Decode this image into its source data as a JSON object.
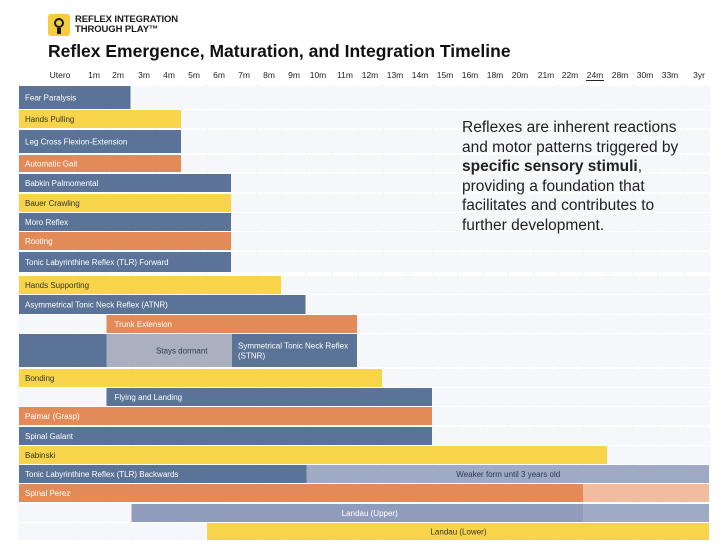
{
  "logo": {
    "line1": "REFLEX INTEGRATION",
    "line2": "THROUGH PLAY™"
  },
  "description": {
    "pre": "Reflexes are inherent reactions and motor patterns triggered by ",
    "bold": "specific sensory stimuli",
    "post": ", providing a foundation that facilitates and contributes to further development."
  },
  "colors": {
    "blue": "#5b7397",
    "orange": "#e38b58",
    "yellow": "#f7d44a",
    "blue_light": "#9fabc4",
    "orange_light": "#f2bca0",
    "yellow_light": "#fae59e",
    "grey": "#a9b1c0"
  },
  "chart_data": {
    "type": "gantt",
    "title": "Reflex Emergence, Maturation, and Integration Timeline",
    "timeline": [
      "Utero",
      "1m",
      "2m",
      "3m",
      "4m",
      "5m",
      "6m",
      "7m",
      "8m",
      "9m",
      "10m",
      "11m",
      "12m",
      "13m",
      "14m",
      "15m",
      "16m",
      "18m",
      "20m",
      "21m",
      "22m",
      "24m",
      "28m",
      "30m",
      "33m",
      "3yr"
    ],
    "highlighted_tick": "24m",
    "rows": [
      {
        "segments": [
          {
            "label": "Fear Paralysis",
            "start": "Utero",
            "end": "2m",
            "color": "blue"
          }
        ]
      },
      {
        "segments": [
          {
            "label": "Hands Pulling",
            "start": "Utero",
            "end": "4m",
            "color": "yellow"
          }
        ]
      },
      {
        "segments": [
          {
            "label": "Leg Cross Flexion-Extension",
            "start": "Utero",
            "end": "4m",
            "color": "blue"
          }
        ]
      },
      {
        "segments": [
          {
            "label": "Automatic Gait",
            "start": "Utero",
            "end": "4m",
            "color": "orange"
          }
        ]
      },
      {
        "segments": [
          {
            "label": "Babkin Palmomental",
            "start": "Utero",
            "end": "6m",
            "color": "blue"
          }
        ]
      },
      {
        "segments": [
          {
            "label": "Bauer Crawling",
            "start": "Utero",
            "end": "6m",
            "color": "yellow"
          }
        ]
      },
      {
        "segments": [
          {
            "label": "Moro Reflex",
            "start": "Utero",
            "end": "6m",
            "color": "blue"
          }
        ]
      },
      {
        "segments": [
          {
            "label": "Rooting",
            "start": "Utero",
            "end": "6m",
            "color": "orange"
          }
        ]
      },
      {
        "segments": [
          {
            "label": "Tonic Labyrinthine Reflex (TLR) Forward",
            "start": "Utero",
            "end": "6m",
            "color": "blue"
          }
        ]
      },
      {
        "segments": [
          {
            "label": "Hands Supporting",
            "start": "Utero",
            "end": "8m",
            "color": "yellow"
          }
        ]
      },
      {
        "segments": [
          {
            "label": "Asymmetrical Tonic Neck Reflex (ATNR)",
            "start": "Utero",
            "end": "9m",
            "color": "blue"
          }
        ]
      },
      {
        "segments": [
          {
            "label": "Trunk Extension",
            "start": "2m",
            "end": "11m",
            "color": "orange"
          }
        ]
      },
      {
        "segments": [
          {
            "label": "",
            "start": "Utero",
            "end": "2m",
            "color": "blue"
          },
          {
            "label": "Stays dormant",
            "start": "2m",
            "end": "7m",
            "color": "grey"
          },
          {
            "label": "Symmetrical Tonic Neck Reflex (STNR)",
            "start": "7m",
            "end": "11m",
            "color": "blue"
          }
        ]
      },
      {
        "segments": [
          {
            "label": "Bonding",
            "start": "Utero",
            "end": "12m",
            "color": "yellow"
          }
        ]
      },
      {
        "segments": [
          {
            "label": "Flying and Landing",
            "start": "2m",
            "end": "14m",
            "color": "blue"
          }
        ]
      },
      {
        "segments": [
          {
            "label": "Palmar (Grasp)",
            "start": "Utero",
            "end": "14m",
            "color": "orange"
          }
        ]
      },
      {
        "segments": [
          {
            "label": "Spinal Galant",
            "start": "Utero",
            "end": "14m",
            "color": "blue"
          }
        ]
      },
      {
        "segments": [
          {
            "label": "Babinski",
            "start": "Utero",
            "end": "24m",
            "color": "yellow"
          }
        ]
      },
      {
        "segments": [
          {
            "label": "Tonic Labyrinthine Reflex (TLR) Backwards",
            "start": "Utero",
            "end": "10m",
            "color": "blue"
          },
          {
            "label": "Weaker form until 3 years old",
            "start": "10m",
            "end": "3yr",
            "color": "blue_light"
          }
        ]
      },
      {
        "segments": [
          {
            "label": "Spinal Perez",
            "start": "Utero",
            "end": "24m",
            "color": "orange"
          },
          {
            "label": "",
            "start": "24m",
            "end": "3yr",
            "color": "orange_light"
          }
        ]
      },
      {
        "segments": [
          {
            "label": "Landau (Upper)",
            "start": "3m",
            "end": "24m",
            "color": "blue_light_mid"
          },
          {
            "label": "",
            "start": "24m",
            "end": "3yr",
            "color": "blue_light"
          }
        ]
      },
      {
        "segments": [
          {
            "label": "Landau (Lower)",
            "start": "6m",
            "end": "3yr",
            "color": "yellow"
          }
        ]
      }
    ]
  }
}
